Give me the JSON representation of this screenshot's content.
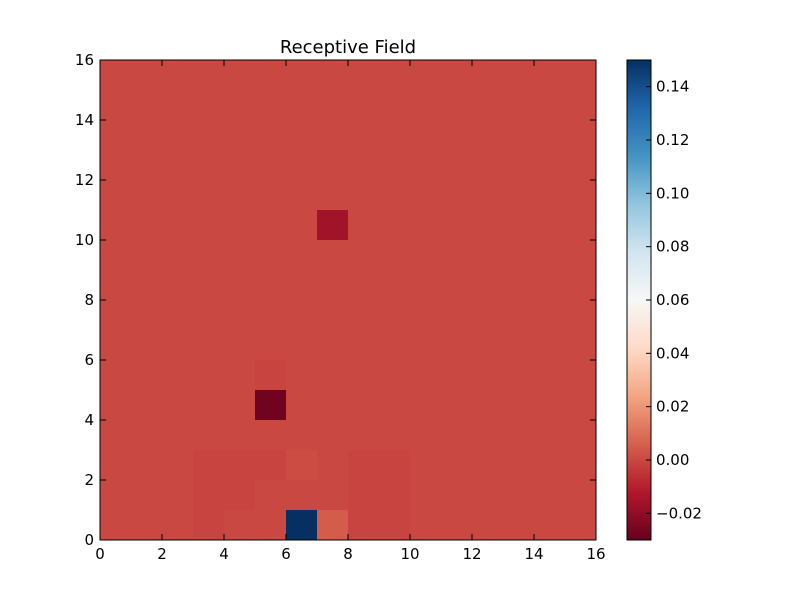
{
  "chart_data": {
    "type": "heatmap",
    "title": "Receptive Field",
    "xlabel": "",
    "ylabel": "",
    "xlim": [
      0,
      16
    ],
    "ylim": [
      0,
      16
    ],
    "x_ticks": [
      0,
      2,
      4,
      6,
      8,
      10,
      12,
      14,
      16
    ],
    "y_ticks": [
      0,
      2,
      4,
      6,
      8,
      10,
      12,
      14,
      16
    ],
    "x_tick_labels": [
      "0",
      "2",
      "4",
      "6",
      "8",
      "10",
      "12",
      "14",
      "16"
    ],
    "y_tick_labels": [
      "0",
      "2",
      "4",
      "6",
      "8",
      "10",
      "12",
      "14",
      "16"
    ],
    "colormap": "RdBu",
    "color_range": [
      -0.03,
      0.15
    ],
    "colorbar_ticks": [
      -0.02,
      0.0,
      0.02,
      0.04,
      0.06,
      0.08,
      0.1,
      0.12,
      0.14
    ],
    "colorbar_tick_labels": [
      "−0.02",
      "0.00",
      "0.02",
      "0.04",
      "0.06",
      "0.08",
      "0.10",
      "0.12",
      "0.14"
    ],
    "background_value": 0.0,
    "cells": [
      {
        "x": 7,
        "y": 10,
        "value": -0.016
      },
      {
        "x": 5,
        "y": 4,
        "value": -0.028
      },
      {
        "x": 6,
        "y": 0,
        "value": 0.15
      },
      {
        "x": 7,
        "y": 0,
        "value": 0.005
      },
      {
        "x": 5,
        "y": 5,
        "value": -0.001
      },
      {
        "x": 3,
        "y": 0,
        "value": -0.001
      },
      {
        "x": 3,
        "y": 1,
        "value": -0.001
      },
      {
        "x": 3,
        "y": 2,
        "value": -0.001
      },
      {
        "x": 4,
        "y": 1,
        "value": -0.001
      },
      {
        "x": 4,
        "y": 2,
        "value": -0.001
      },
      {
        "x": 5,
        "y": 2,
        "value": -0.001
      },
      {
        "x": 6,
        "y": 2,
        "value": 0.001
      },
      {
        "x": 8,
        "y": 0,
        "value": -0.001
      },
      {
        "x": 8,
        "y": 1,
        "value": -0.001
      },
      {
        "x": 8,
        "y": 2,
        "value": -0.001
      },
      {
        "x": 9,
        "y": 0,
        "value": -0.001
      },
      {
        "x": 9,
        "y": 1,
        "value": -0.001
      },
      {
        "x": 9,
        "y": 2,
        "value": -0.001
      }
    ]
  }
}
